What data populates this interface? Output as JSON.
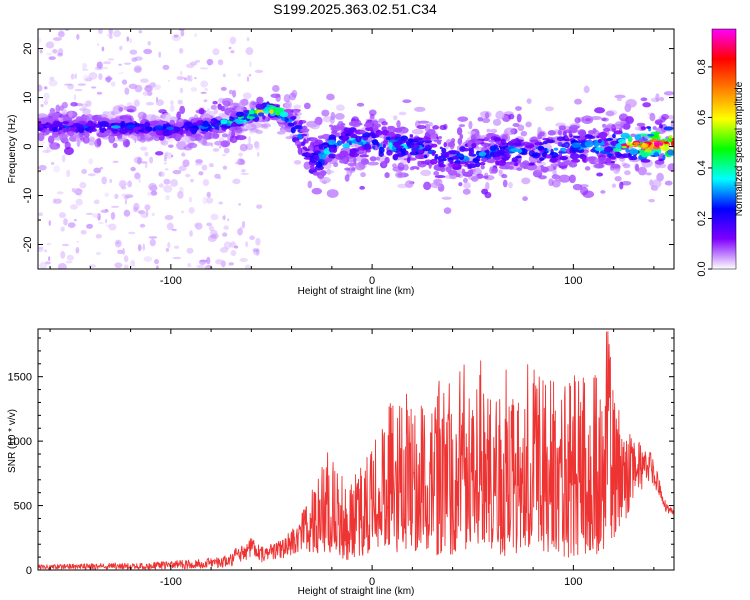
{
  "title": "S199.2025.363.02.51.C34",
  "chart_data": [
    {
      "type": "heatmap",
      "xlabel": "Height of straight line (km)",
      "ylabel": "Frequency (Hz)",
      "xlim": [
        -166,
        150
      ],
      "ylim": [
        -25,
        24
      ],
      "xticks": [
        -100,
        0,
        100
      ],
      "yticks": [
        -20,
        -10,
        0,
        10,
        20
      ],
      "xtick_labels": [
        "-100",
        "0",
        "100"
      ],
      "ytick_labels": [
        "-20",
        "-10",
        "0",
        "10",
        "20"
      ],
      "colorbar": {
        "label": "Normalized spectral amplitude",
        "range": [
          0,
          0.95
        ],
        "ticks": [
          0.0,
          0.2,
          0.4,
          0.6,
          0.8
        ],
        "tick_labels": [
          "0.0",
          "0.2",
          "0.4",
          "0.6",
          "0.8"
        ],
        "colormap": [
          "#ffffff",
          "#7f00ff",
          "#0000ff",
          "#00ffff",
          "#00ff00",
          "#ffff00",
          "#ff7f00",
          "#ff0000",
          "#ff00ff"
        ]
      },
      "ridge": {
        "x": [
          -166,
          -140,
          -120,
          -100,
          -85,
          -70,
          -60,
          -52,
          -45,
          -40,
          -35,
          -30,
          -25,
          -20,
          -10,
          0,
          10,
          20,
          30,
          40,
          50,
          60,
          70,
          80,
          90,
          100,
          110,
          120,
          130,
          140,
          150
        ],
        "frequency": [
          4,
          4,
          4,
          3.5,
          4,
          5,
          6.5,
          7.5,
          7,
          5,
          2,
          -3,
          -2,
          0,
          1,
          1,
          0,
          0,
          -1,
          -2,
          -2,
          -1,
          -1,
          -1,
          -1,
          0,
          0,
          0,
          0.5,
          0.5,
          0.5
        ],
        "peak_amplitude": [
          0.25,
          0.3,
          0.3,
          0.3,
          0.35,
          0.45,
          0.6,
          0.7,
          0.55,
          0.35,
          0.3,
          0.3,
          0.35,
          0.35,
          0.35,
          0.3,
          0.35,
          0.3,
          0.3,
          0.3,
          0.3,
          0.3,
          0.3,
          0.3,
          0.3,
          0.3,
          0.35,
          0.4,
          0.6,
          0.85,
          0.9
        ]
      }
    },
    {
      "type": "line",
      "xlabel": "Height of straight line (km)",
      "ylabel": "SNR (10 * v/v)",
      "xlim": [
        -166,
        150
      ],
      "ylim": [
        0,
        1870
      ],
      "xticks": [
        -100,
        0,
        100
      ],
      "yticks": [
        0,
        500,
        1000,
        1500
      ],
      "xtick_labels": [
        "-100",
        "0",
        "100"
      ],
      "ytick_labels": [
        "0",
        "500",
        "1000",
        "1500"
      ],
      "color": "#ee3333",
      "envelope": {
        "x": [
          -166,
          -140,
          -110,
          -90,
          -75,
          -70,
          -65,
          -60,
          -55,
          -45,
          -38,
          -32,
          -28,
          -22,
          -18,
          -12,
          -5,
          0,
          5,
          15,
          25,
          35,
          45,
          55,
          60,
          65,
          75,
          80,
          85,
          95,
          110,
          117,
          120,
          125,
          130,
          138,
          142,
          146,
          150
        ],
        "max": [
          40,
          50,
          60,
          80,
          100,
          140,
          200,
          260,
          180,
          230,
          360,
          540,
          700,
          920,
          850,
          700,
          800,
          950,
          1200,
          1450,
          1380,
          1550,
          1660,
          1620,
          1450,
          1550,
          1660,
          1600,
          1500,
          1550,
          1550,
          1870,
          1400,
          1150,
          1000,
          980,
          750,
          520,
          460
        ],
        "min": [
          5,
          5,
          5,
          10,
          15,
          30,
          60,
          90,
          60,
          80,
          120,
          150,
          120,
          150,
          100,
          80,
          100,
          150,
          200,
          120,
          150,
          100,
          150,
          200,
          150,
          100,
          150,
          180,
          150,
          100,
          100,
          150,
          250,
          350,
          550,
          700,
          600,
          450,
          420
        ]
      }
    }
  ]
}
